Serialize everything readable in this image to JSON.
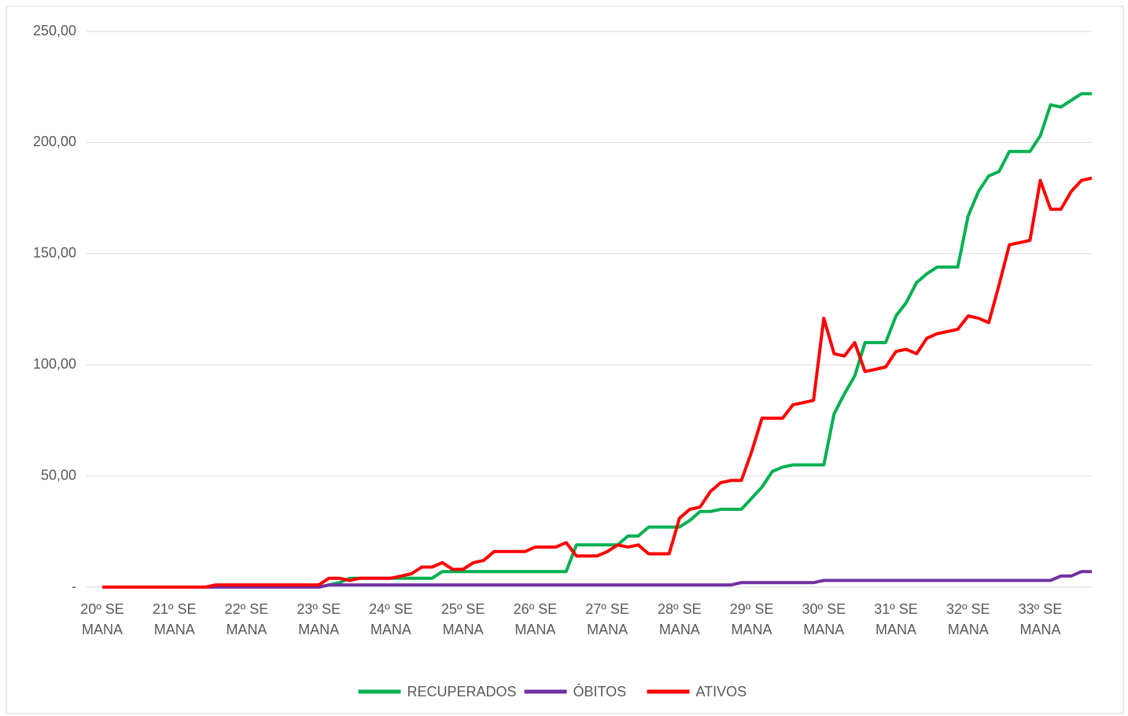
{
  "chart_data": {
    "type": "line",
    "categories": [
      "20º SEMANA",
      null,
      null,
      null,
      null,
      null,
      null,
      "21º SEMANA",
      null,
      null,
      null,
      null,
      null,
      null,
      "22º SEMANA",
      null,
      null,
      null,
      null,
      null,
      null,
      "23º SEMANA",
      null,
      null,
      null,
      null,
      null,
      null,
      "24º SEMANA",
      null,
      null,
      null,
      null,
      null,
      null,
      "25º SEMANA",
      null,
      null,
      null,
      null,
      null,
      null,
      "26º SEMANA",
      null,
      null,
      null,
      null,
      null,
      null,
      "27º SEMANA",
      null,
      null,
      null,
      null,
      null,
      null,
      "28º SEMANA",
      null,
      null,
      null,
      null,
      null,
      null,
      "29º SEMANA",
      null,
      null,
      null,
      null,
      null,
      null,
      "30º SEMANA",
      null,
      null,
      null,
      null,
      null,
      null,
      "31º SEMANA",
      null,
      null,
      null,
      null,
      null,
      null,
      "32º SEMANA",
      null,
      null,
      null,
      null,
      null,
      null,
      "33º SEMANA",
      null,
      null,
      null,
      null,
      null
    ],
    "series": [
      {
        "name": "RECUPERADOS",
        "color": "#00b050",
        "values": [
          0,
          0,
          0,
          0,
          0,
          0,
          0,
          0,
          0,
          0,
          0,
          0,
          0,
          0,
          0,
          0,
          0,
          0,
          0,
          0,
          0,
          0,
          1,
          2,
          4,
          4,
          4,
          4,
          4,
          4,
          4,
          4,
          4,
          7,
          7,
          7,
          7,
          7,
          7,
          7,
          7,
          7,
          7,
          7,
          7,
          7,
          19,
          19,
          19,
          19,
          19,
          23,
          23,
          27,
          27,
          27,
          27,
          30,
          34,
          34,
          35,
          35,
          35,
          40,
          45,
          52,
          54,
          55,
          55,
          55,
          55,
          78,
          87,
          95,
          110,
          110,
          110,
          122,
          128,
          137,
          141,
          144,
          144,
          144,
          167,
          178,
          185,
          187,
          196,
          196,
          196,
          203,
          217,
          216,
          219,
          222,
          222
        ]
      },
      {
        "name": "ÓBITOS",
        "color": "#7030a0",
        "values": [
          0,
          0,
          0,
          0,
          0,
          0,
          0,
          0,
          0,
          0,
          0,
          0,
          0,
          0,
          0,
          0,
          0,
          0,
          0,
          0,
          0,
          0,
          1,
          1,
          1,
          1,
          1,
          1,
          1,
          1,
          1,
          1,
          1,
          1,
          1,
          1,
          1,
          1,
          1,
          1,
          1,
          1,
          1,
          1,
          1,
          1,
          1,
          1,
          1,
          1,
          1,
          1,
          1,
          1,
          1,
          1,
          1,
          1,
          1,
          1,
          1,
          1,
          2,
          2,
          2,
          2,
          2,
          2,
          2,
          2,
          3,
          3,
          3,
          3,
          3,
          3,
          3,
          3,
          3,
          3,
          3,
          3,
          3,
          3,
          3,
          3,
          3,
          3,
          3,
          3,
          3,
          3,
          3,
          5,
          5,
          7,
          7
        ]
      },
      {
        "name": "ATIVOS",
        "color": "#ff0000",
        "values": [
          0,
          0,
          0,
          0,
          0,
          0,
          0,
          0,
          0,
          0,
          0,
          1,
          1,
          1,
          1,
          1,
          1,
          1,
          1,
          1,
          1,
          1,
          4,
          4,
          3,
          4,
          4,
          4,
          4,
          5,
          6,
          9,
          9,
          11,
          8,
          8,
          11,
          12,
          16,
          16,
          16,
          16,
          18,
          18,
          18,
          20,
          14,
          14,
          14,
          16,
          19,
          18,
          19,
          15,
          15,
          15,
          31,
          35,
          36,
          43,
          47,
          48,
          48,
          61,
          76,
          76,
          76,
          82,
          83,
          84,
          121,
          105,
          104,
          110,
          97,
          98,
          99,
          106,
          107,
          105,
          112,
          114,
          115,
          116,
          122,
          121,
          119,
          136,
          154,
          155,
          156,
          183,
          170,
          170,
          178,
          183,
          184
        ]
      }
    ],
    "ylim": [
      0,
      250
    ],
    "yticks": [
      {
        "value": 0,
        "label": "-"
      },
      {
        "value": 50,
        "label": "50,00"
      },
      {
        "value": 100,
        "label": "100,00"
      },
      {
        "value": 150,
        "label": "150,00"
      },
      {
        "value": 200,
        "label": "200,00"
      },
      {
        "value": 250,
        "label": "250,00"
      }
    ],
    "grid": true,
    "legend": "bottom"
  }
}
